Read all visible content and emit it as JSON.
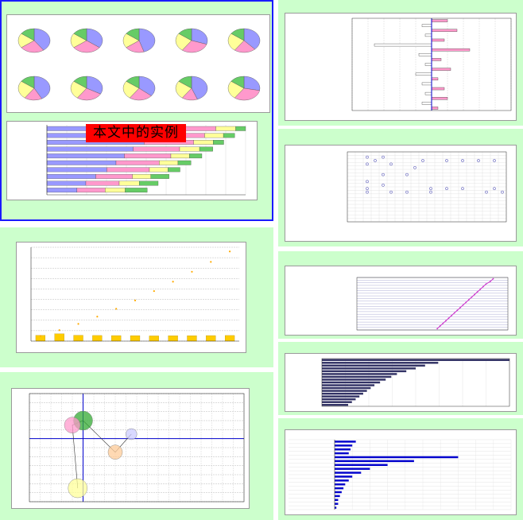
{
  "banner": {
    "text": "本文中的实例"
  },
  "panel1": {
    "border_color": "#1a1aff",
    "pies": [
      {
        "slices": [
          40,
          25,
          20,
          15
        ]
      },
      {
        "slices": [
          35,
          30,
          20,
          15
        ]
      },
      {
        "slices": [
          45,
          20,
          20,
          15
        ]
      },
      {
        "slices": [
          30,
          30,
          25,
          15
        ]
      },
      {
        "slices": [
          38,
          22,
          25,
          15
        ]
      },
      {
        "slices": [
          42,
          18,
          25,
          15
        ]
      },
      {
        "slices": [
          33,
          27,
          25,
          15
        ]
      },
      {
        "slices": [
          36,
          24,
          25,
          15
        ]
      },
      {
        "slices": [
          44,
          16,
          25,
          15
        ]
      },
      {
        "slices": [
          28,
          32,
          25,
          15
        ]
      }
    ],
    "pie_colors": [
      "#9999ff",
      "#ff99cc",
      "#ffff99",
      "#66cc66",
      "#ff9966"
    ],
    "hbar_values": [
      [
        60,
        25,
        10,
        5
      ],
      [
        58,
        26,
        10,
        6
      ],
      [
        55,
        28,
        11,
        6
      ],
      [
        52,
        28,
        12,
        8
      ],
      [
        50,
        30,
        12,
        8
      ],
      [
        48,
        30,
        13,
        9
      ],
      [
        45,
        32,
        14,
        9
      ],
      [
        40,
        30,
        15,
        15
      ],
      [
        35,
        30,
        18,
        17
      ],
      [
        30,
        28,
        20,
        22
      ]
    ],
    "hbar_colors": [
      "#9999ff",
      "#ff99cc",
      "#ffff99",
      "#66cc66"
    ]
  },
  "panel2": {
    "chart_data": {
      "type": "bar",
      "values": [
        110,
        140,
        112,
        108,
        106,
        105,
        100,
        102,
        104,
        106,
        108
      ],
      "line_values": [
        100,
        210,
        330,
        470,
        620,
        780,
        960,
        1140,
        1330,
        1520,
        1720
      ],
      "ylim": [
        0,
        1800
      ],
      "bar_color": "#ffcc00",
      "grid": true
    }
  },
  "panel3": {
    "chart_data": {
      "type": "scatter",
      "points": [
        {
          "x": 10,
          "y": 2.0,
          "r": 12,
          "color": "#33aa33"
        },
        {
          "x": 8,
          "y": 1.5,
          "r": 10,
          "color": "#ff99cc"
        },
        {
          "x": 16,
          "y": -1.5,
          "r": 9,
          "color": "#ffcc99"
        },
        {
          "x": 19,
          "y": 0.5,
          "r": 7,
          "color": "#ccccff"
        },
        {
          "x": 9,
          "y": -5.5,
          "r": 12,
          "color": "#ffff99"
        }
      ],
      "xlim": [
        0,
        40
      ],
      "ylim": [
        -7,
        5
      ],
      "axis_color": "#0000cc"
    }
  },
  "panel4": {
    "chart_data": {
      "type": "bar",
      "series_colors": [
        "#ff99cc",
        "#ffffff"
      ],
      "values": [
        0.5,
        -0.3,
        0.8,
        -0.2,
        0.4,
        -1.8,
        1.2,
        -0.4,
        0.3,
        -0.2,
        0.6,
        -0.5,
        0.2,
        -0.3,
        0.4,
        -0.2,
        0.5,
        -0.3,
        0.2
      ],
      "xlim": [
        -2.5,
        2.5
      ],
      "axis_color": "#0000cc"
    }
  },
  "panel5": {
    "chart_data": {
      "type": "scatter",
      "rows": 20,
      "cols": 20
    }
  },
  "panel6": {
    "chart_data": {
      "type": "line",
      "values": [
        95,
        93,
        90,
        88,
        86,
        84,
        82,
        80,
        78,
        76,
        74,
        72,
        70,
        68,
        66,
        64,
        62,
        60,
        58,
        56
      ],
      "line_color": "#cc33cc"
    }
  },
  "panel7": {
    "chart_data": {
      "type": "bar",
      "values": [
        100,
        62,
        55,
        50,
        45,
        40,
        37,
        34,
        31,
        28,
        26,
        24,
        22,
        20,
        18,
        16,
        14
      ],
      "bar_color": "#333366"
    }
  },
  "panel8": {
    "chart_data": {
      "type": "bar",
      "values": [
        12,
        10,
        9,
        8,
        70,
        45,
        30,
        20,
        15,
        10,
        8,
        6,
        5,
        4,
        3,
        2,
        2,
        1
      ],
      "bar_color": "#0000cc"
    }
  }
}
